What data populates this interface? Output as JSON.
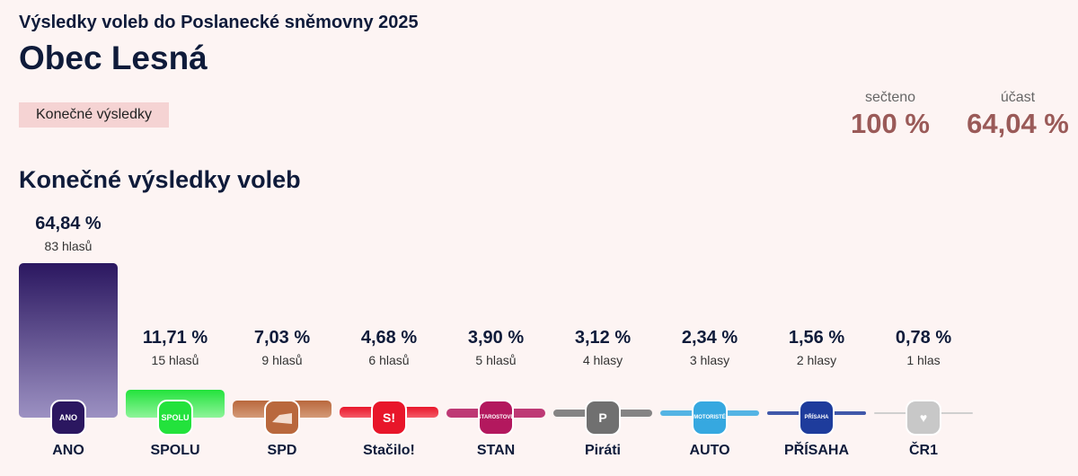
{
  "header": {
    "subtitle": "Výsledky voleb do Poslanecké sněmovny 2025",
    "title": "Obec Lesná",
    "badge": "Konečné výsledky"
  },
  "stats": {
    "counted_label": "sečteno",
    "counted_value": "100 %",
    "turnout_label": "účast",
    "turnout_value": "64,04 %"
  },
  "section_title": "Konečné výsledky voleb",
  "chart_data": {
    "type": "bar",
    "title": "Konečné výsledky voleb",
    "ylim": [
      0,
      65
    ],
    "categories": [
      "ANO",
      "SPOLU",
      "SPD",
      "Stačilo!",
      "STAN",
      "Piráti",
      "AUTO",
      "PŘÍSAHA",
      "ČR1"
    ],
    "values": [
      64.84,
      11.71,
      7.03,
      4.68,
      3.9,
      3.12,
      2.34,
      1.56,
      0.78
    ],
    "value_labels": [
      "64,84 %",
      "11,71 %",
      "7,03 %",
      "4,68 %",
      "3,90 %",
      "3,12 %",
      "2,34 %",
      "1,56 %",
      "0,78 %"
    ],
    "votes": [
      "83 hlasů",
      "15 hlasů",
      "9 hlasů",
      "6 hlasů",
      "5 hlasů",
      "4 hlasy",
      "3 hlasy",
      "2 hlasy",
      "1 hlas"
    ],
    "logos": [
      "ANO",
      "SPOLU",
      "",
      "S!",
      "STAROSTOVÉ",
      "P",
      "MOTORISTÉ",
      "PŘÍSAHA",
      "♥"
    ],
    "colors": [
      "#2b1760",
      "#23e23c",
      "#b9683d",
      "#e8162a",
      "#b3185e",
      "#707070",
      "#36a8e0",
      "#1e3c9c",
      "#c8c8c8"
    ],
    "colors_light": [
      "#9c91c2",
      "#8ef49a",
      "#d49a78",
      "#f45a66",
      "#d9679b",
      "#9a9a9a",
      "#7ccbef",
      "#4a64b6",
      "#dedede"
    ]
  }
}
